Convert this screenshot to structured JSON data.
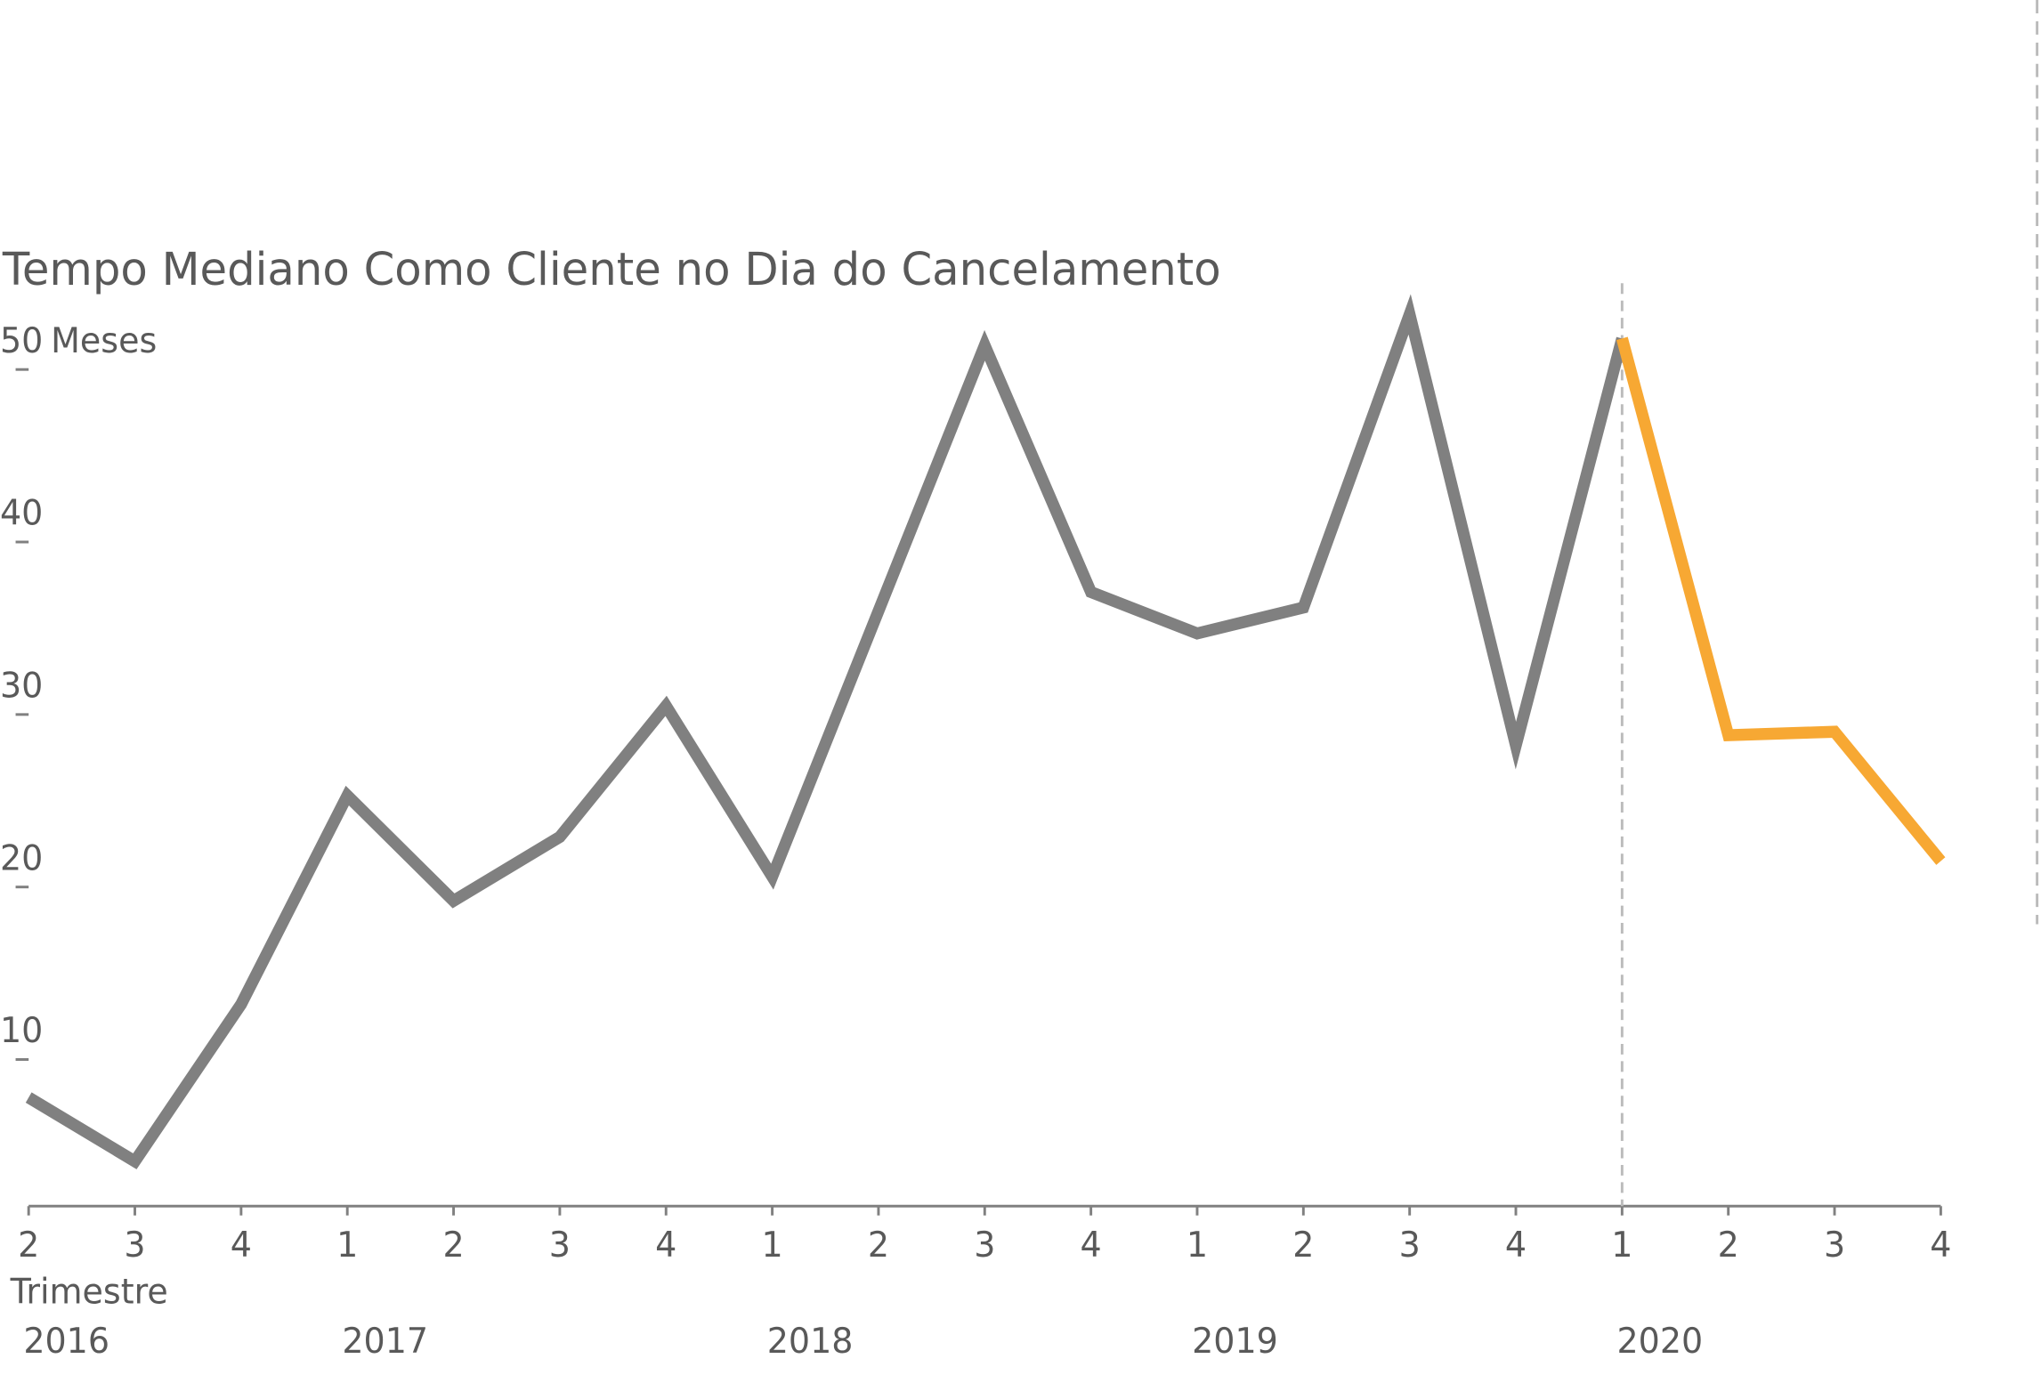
{
  "chart_data": {
    "type": "line",
    "title": "Tempo Mediano Como Cliente no Dia do Cancelamento",
    "y_unit": "Meses",
    "x_label": "Trimestre",
    "year_groups": [
      {
        "label": "2016",
        "quarters": [
          "2",
          "3",
          "4"
        ]
      },
      {
        "label": "2017",
        "quarters": [
          "1",
          "2",
          "3",
          "4"
        ]
      },
      {
        "label": "2018",
        "quarters": [
          "1",
          "2",
          "3",
          "4"
        ]
      },
      {
        "label": "2019",
        "quarters": [
          "1",
          "2",
          "3",
          "4"
        ]
      },
      {
        "label": "2020",
        "quarters": [
          "1",
          "2",
          "3",
          "4"
        ]
      }
    ],
    "series": [
      {
        "color": "#808080",
        "values": [
          7.8,
          4.1,
          13.2,
          25.3,
          19.2,
          22.9,
          30.5,
          20.6,
          36.0,
          51.4,
          37.1,
          34.7,
          36.2,
          53.2,
          28.2,
          51.8,
          null,
          null,
          null
        ]
      },
      {
        "color": "#f7a833",
        "values": [
          null,
          null,
          null,
          null,
          null,
          null,
          null,
          null,
          null,
          null,
          null,
          null,
          null,
          null,
          null,
          51.8,
          28.8,
          29.0,
          21.5
        ]
      }
    ],
    "ylim": [
      1.5,
      55
    ],
    "yticks": [
      10,
      20,
      30,
      40,
      50
    ]
  }
}
